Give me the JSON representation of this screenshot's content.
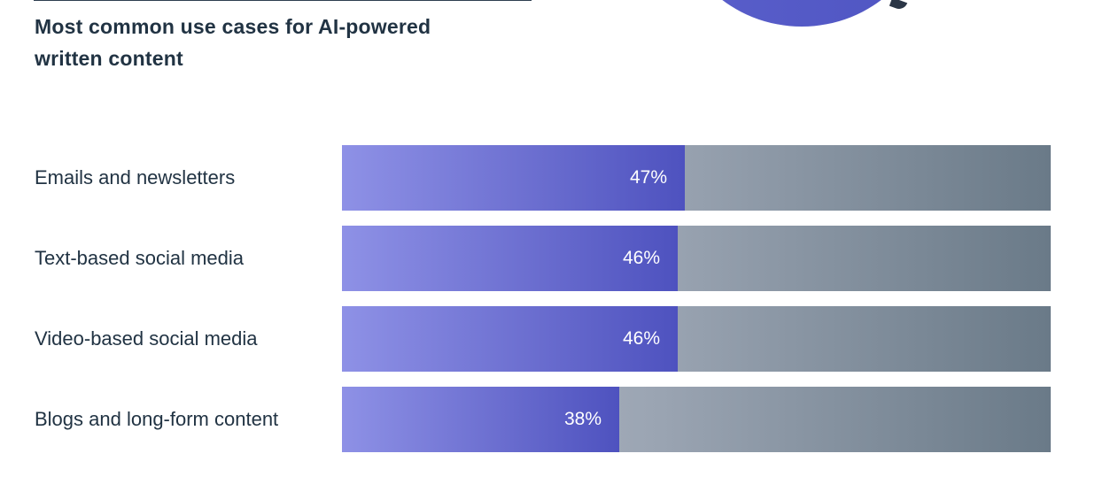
{
  "title": "Most common use cases for AI-powered written content",
  "chart_data": {
    "type": "bar",
    "orientation": "horizontal",
    "title": "Most common use cases for AI-powered written content",
    "categories": [
      "Emails and newsletters",
      "Text-based social media",
      "Video-based social media",
      "Blogs and long-form content"
    ],
    "values": [
      47,
      46,
      46,
      38
    ],
    "value_labels": [
      "47%",
      "46%",
      "46%",
      "38%"
    ],
    "unit": "%",
    "xlim": [
      0,
      100
    ],
    "grid": false,
    "legend": "none"
  },
  "colors": {
    "title_text": "#213343",
    "label_text": "#213343",
    "bar_fill": "#6c6fd0",
    "bar_track": "#9aa4b2",
    "value_text": "#ffffff"
  }
}
